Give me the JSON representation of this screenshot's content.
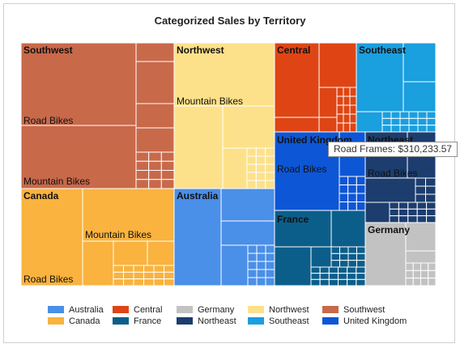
{
  "chart_data": {
    "type": "treemap",
    "title": "Categorized Sales by Territory",
    "tooltip": "Road Frames: $310,233.57",
    "territories": [
      {
        "name": "Southwest",
        "color": "#c8694a",
        "subcategories": [
          "Road Bikes",
          "Mountain Bikes"
        ]
      },
      {
        "name": "Canada",
        "color": "#f9b33e",
        "subcategories": [
          "Mountain Bikes",
          "Road Bikes"
        ]
      },
      {
        "name": "Northwest",
        "color": "#fde18a",
        "subcategories": [
          "Mountain Bikes"
        ]
      },
      {
        "name": "Australia",
        "color": "#4a8fe8",
        "subcategories": []
      },
      {
        "name": "Central",
        "color": "#df4514",
        "subcategories": []
      },
      {
        "name": "Southeast",
        "color": "#1a9fdf",
        "subcategories": []
      },
      {
        "name": "United Kingdom",
        "color": "#0d56d6",
        "subcategories": [
          "Road Bikes"
        ]
      },
      {
        "name": "Northeast",
        "color": "#1c3d6e",
        "subcategories": [
          "Road Bikes"
        ]
      },
      {
        "name": "France",
        "color": "#0c5e8a",
        "subcategories": []
      },
      {
        "name": "Germany",
        "color": "#c2c2c2",
        "subcategories": []
      }
    ],
    "legend": [
      {
        "name": "Australia",
        "color": "#4a8fe8"
      },
      {
        "name": "Central",
        "color": "#df4514"
      },
      {
        "name": "Germany",
        "color": "#c2c2c2"
      },
      {
        "name": "Northwest",
        "color": "#fde18a"
      },
      {
        "name": "Southwest",
        "color": "#c8694a"
      },
      {
        "name": "Canada",
        "color": "#f9b33e"
      },
      {
        "name": "France",
        "color": "#0c5e8a"
      },
      {
        "name": "Northeast",
        "color": "#1c3d6e"
      },
      {
        "name": "Southeast",
        "color": "#1a9fdf"
      },
      {
        "name": "United Kingdom",
        "color": "#0d56d6"
      }
    ]
  }
}
